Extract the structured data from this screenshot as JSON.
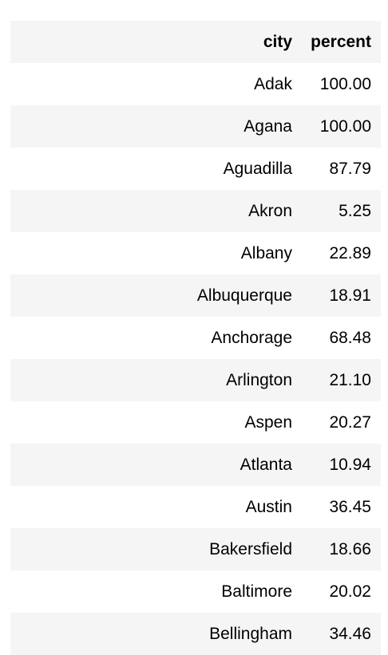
{
  "table": {
    "columns": [
      "city",
      "percent"
    ],
    "rows": [
      {
        "city": "Adak",
        "percent": "100.00"
      },
      {
        "city": "Agana",
        "percent": "100.00"
      },
      {
        "city": "Aguadilla",
        "percent": "87.79"
      },
      {
        "city": "Akron",
        "percent": "5.25"
      },
      {
        "city": "Albany",
        "percent": "22.89"
      },
      {
        "city": "Albuquerque",
        "percent": "18.91"
      },
      {
        "city": "Anchorage",
        "percent": "68.48"
      },
      {
        "city": "Arlington",
        "percent": "21.10"
      },
      {
        "city": "Aspen",
        "percent": "20.27"
      },
      {
        "city": "Atlanta",
        "percent": "10.94"
      },
      {
        "city": "Austin",
        "percent": "36.45"
      },
      {
        "city": "Bakersfield",
        "percent": "18.66"
      },
      {
        "city": "Baltimore",
        "percent": "20.02"
      },
      {
        "city": "Bellingham",
        "percent": "34.46"
      }
    ]
  },
  "colors": {
    "stripe": "#f5f5f5",
    "background": "#ffffff",
    "text": "#000000"
  }
}
